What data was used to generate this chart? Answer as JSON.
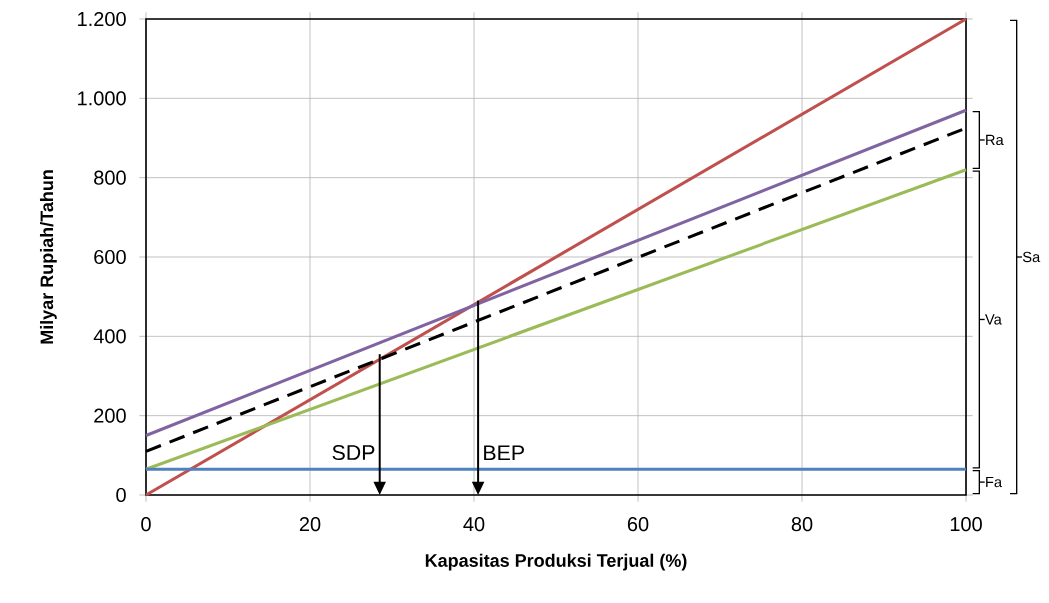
{
  "chart_data": {
    "type": "line",
    "xlabel": "Kapasitas  Produksi  Terjual (%)",
    "ylabel": "Milyar Rupiah/Tahun",
    "xlim": [
      0,
      100
    ],
    "xticks": [
      0,
      20,
      40,
      60,
      80,
      100
    ],
    "ylim": [
      0,
      1200
    ],
    "yticks": [
      0,
      200,
      400,
      600,
      800,
      {
        "value": 1000,
        "label": "1.000"
      },
      {
        "value": 1200,
        "label": "1.200"
      }
    ],
    "grid": true,
    "marker": "none",
    "x": [
      0,
      100
    ],
    "series": [
      {
        "color": "#c0504d",
        "values": [
          0,
          1200
        ]
      },
      {
        "color": "#8064a2",
        "values": [
          150,
          970
        ]
      },
      {
        "color": "#000000",
        "values": [
          110,
          925
        ],
        "line_style": "dashed"
      },
      {
        "color": "#9bbb59",
        "values": [
          65,
          820
        ]
      },
      {
        "color": "#4f81bd",
        "values": [
          65,
          65
        ]
      }
    ],
    "annotations": [
      {
        "text": "SDP",
        "x": 28.5,
        "y": 355
      },
      {
        "text": "BEP",
        "x": 40.5,
        "y": 490
      },
      "Fa",
      "Va",
      "Ra",
      "Sa"
    ]
  }
}
